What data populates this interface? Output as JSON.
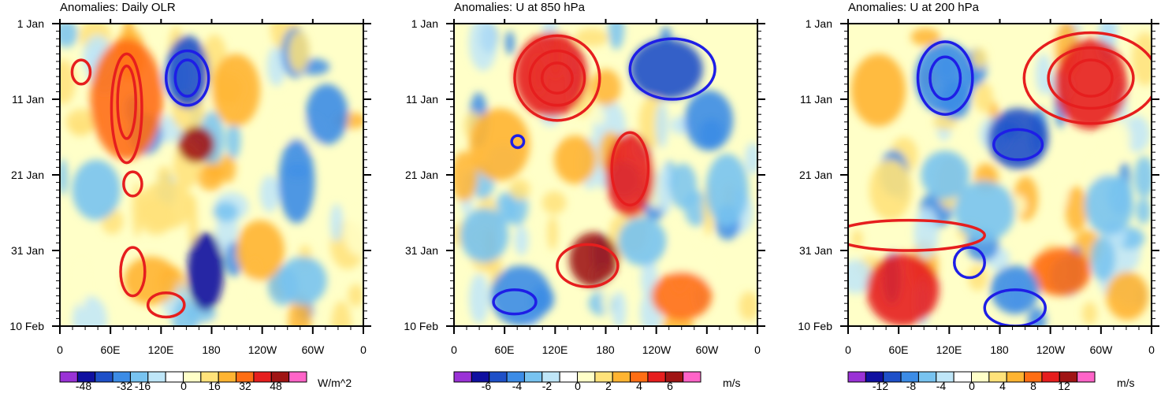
{
  "chart_data": [
    {
      "type": "heatmap",
      "title": "Anomalies: Daily OLR",
      "x_ticks": [
        "0",
        "60E",
        "120E",
        "180",
        "120W",
        "60W",
        "0"
      ],
      "y_ticks": [
        "1 Jan",
        "11 Jan",
        "21 Jan",
        "31 Jan",
        "10 Feb"
      ],
      "colorbar": {
        "labels": [
          "-48",
          "-32",
          "-16",
          "0",
          "16",
          "32",
          "48"
        ],
        "units": "W/m^2"
      }
    },
    {
      "type": "heatmap",
      "title": "Anomalies: U at 850 hPa",
      "x_ticks": [
        "0",
        "60E",
        "120E",
        "180",
        "120W",
        "60W",
        "0"
      ],
      "y_ticks": [
        "1 Jan",
        "11 Jan",
        "21 Jan",
        "31 Jan",
        "10 Feb"
      ],
      "colorbar": {
        "labels": [
          "-6",
          "-4",
          "-2",
          "0",
          "2",
          "4",
          "6"
        ],
        "units": "m/s"
      }
    },
    {
      "type": "heatmap",
      "title": "Anomalies: U at 200 hPa",
      "x_ticks": [
        "0",
        "60E",
        "120E",
        "180",
        "120W",
        "60W",
        "0"
      ],
      "y_ticks": [
        "1 Jan",
        "11 Jan",
        "21 Jan",
        "31 Jan",
        "10 Feb"
      ],
      "colorbar": {
        "labels": [
          "-12",
          "-8",
          "-4",
          "0",
          "4",
          "8",
          "12"
        ],
        "units": "m/s"
      }
    }
  ],
  "palette": [
    "#9a32d6",
    "#1010a0",
    "#1e50c8",
    "#3c8ce6",
    "#78c3f0",
    "#bfe6f8",
    "#ffffff",
    "#ffffc8",
    "#ffe27a",
    "#ffb432",
    "#ff6e14",
    "#e61e1e",
    "#a01414",
    "#ff64c8"
  ]
}
